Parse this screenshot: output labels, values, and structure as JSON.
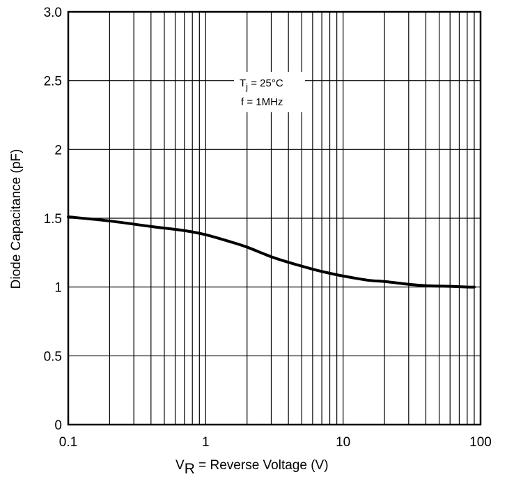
{
  "chart_data": {
    "type": "line",
    "x_scale": "log",
    "xlim": [
      0.1,
      100
    ],
    "ylim": [
      0,
      3.0
    ],
    "x_ticks": [
      "0.1",
      "1",
      "10",
      "100"
    ],
    "y_ticks": [
      "0",
      "0.5",
      "1",
      "1.5",
      "2",
      "2.5",
      "3.0"
    ],
    "x_tick_values": [
      0.1,
      1,
      10,
      100
    ],
    "y_tick_values": [
      0,
      0.5,
      1,
      1.5,
      2,
      2.5,
      3.0
    ],
    "xlabel_main": "V",
    "xlabel_sub": "R",
    "xlabel_rest": " = Reverse Voltage (V)",
    "ylabel": "Diode Capacitance (pF)",
    "grid": true,
    "annotation": {
      "line1_main": "T",
      "line1_sub": "j",
      "line1_rest": " = 25°C",
      "line2": "f = 1MHz"
    },
    "series": [
      {
        "color": "#000000",
        "x": [
          0.1,
          0.2,
          0.4,
          0.7,
          1,
          1.5,
          2,
          3,
          4,
          6,
          8,
          10,
          15,
          20,
          30,
          40,
          60,
          80,
          90
        ],
        "y": [
          1.51,
          1.48,
          1.44,
          1.41,
          1.38,
          1.33,
          1.29,
          1.22,
          1.18,
          1.13,
          1.1,
          1.08,
          1.05,
          1.04,
          1.02,
          1.01,
          1.005,
          1.0,
          1.0
        ]
      }
    ]
  }
}
